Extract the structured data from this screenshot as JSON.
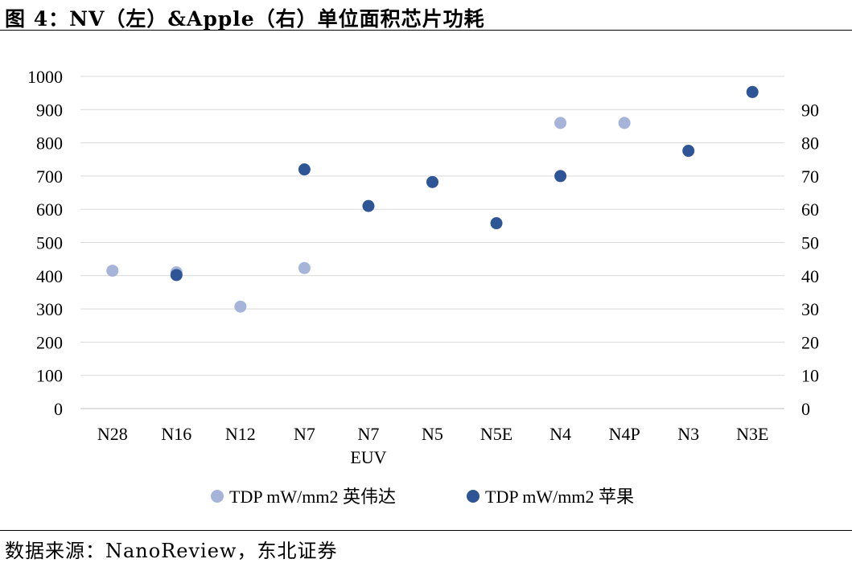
{
  "header": {
    "title": "图 4：NV（左）&Apple（右）单位面积芯片功耗"
  },
  "footer": {
    "source": "数据来源：NanoReview，东北证券"
  },
  "colors": {
    "nvidia": "#a6b4da",
    "apple": "#2e5596",
    "grid": "#d9d9d9",
    "axis": "#bfbfbf"
  },
  "chart_data": {
    "type": "scatter",
    "categories": [
      [
        "N28"
      ],
      [
        "N16"
      ],
      [
        "N12"
      ],
      [
        "N7"
      ],
      [
        "N7",
        "EUV"
      ],
      [
        "N5"
      ],
      [
        "N5E"
      ],
      [
        "N4"
      ],
      [
        "N4P"
      ],
      [
        "N3"
      ],
      [
        "N3E"
      ]
    ],
    "y_left": {
      "min": 0,
      "max": 1000,
      "step": 100,
      "ticks": [
        "0",
        "100",
        "200",
        "300",
        "400",
        "500",
        "600",
        "700",
        "800",
        "900",
        "1000"
      ]
    },
    "y_right": {
      "min": 0,
      "max": 100,
      "step": 10,
      "ticks": [
        "0",
        "10",
        "20",
        "30",
        "40",
        "50",
        "60",
        "70",
        "80",
        "90"
      ]
    },
    "grid": true,
    "legend_position": "bottom",
    "series": [
      {
        "name": "TDP mW/mm2 英伟达",
        "axis": "left",
        "color": "#a6b4da",
        "values": [
          415,
          410,
          307,
          423,
          null,
          null,
          null,
          860,
          860,
          null,
          null
        ]
      },
      {
        "name": "TDP mW/mm2 苹果",
        "axis": "right",
        "color": "#2e5596",
        "values": [
          null,
          40.2,
          null,
          72,
          61,
          68.2,
          55.8,
          70,
          null,
          77.6,
          95.3
        ]
      }
    ]
  }
}
